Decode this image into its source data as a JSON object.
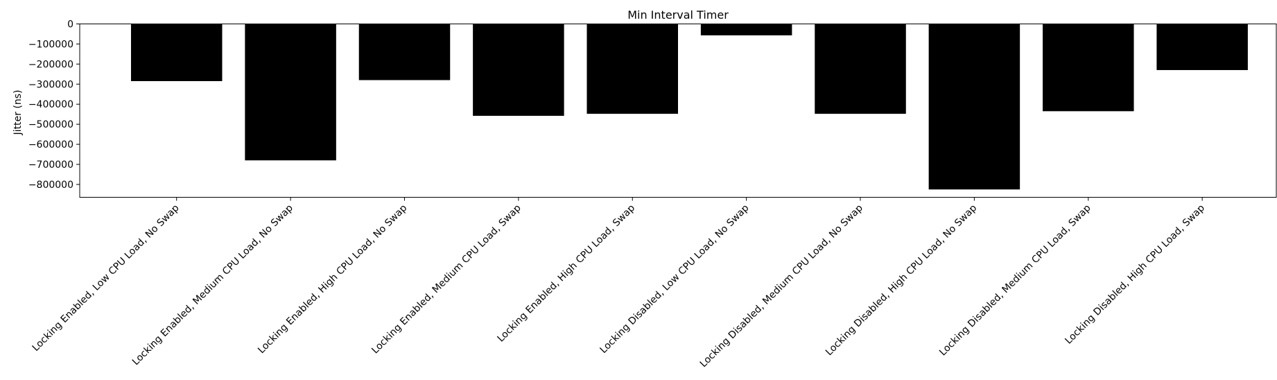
{
  "chart_data": {
    "type": "bar",
    "title": "Min Interval Timer",
    "xlabel": "",
    "ylabel": "Jitter (ns)",
    "categories": [
      "Locking Enabled, Low CPU Load, No Swap",
      "Locking Enabled, Medium CPU Load, No Swap",
      "Locking Enabled, High CPU Load, No Swap",
      "Locking Enabled, Medium CPU Load, Swap",
      "Locking Enabled, High CPU Load, Swap",
      "Locking Disabled, Low CPU Load, No Swap",
      "Locking Disabled, Medium CPU Load, No Swap",
      "Locking Disabled, High CPU Load, No Swap",
      "Locking Disabled, Medium CPU Load, Swap",
      "Locking Disabled, High CPU Load, Swap"
    ],
    "values": [
      -285000,
      -680000,
      -280000,
      -458000,
      -448000,
      -57000,
      -448000,
      -825000,
      -435000,
      -230000
    ],
    "yticks": [
      0,
      -100000,
      -200000,
      -300000,
      -400000,
      -500000,
      -600000,
      -700000,
      -800000
    ],
    "ytick_labels": [
      "0",
      "−100000",
      "−200000",
      "−300000",
      "−400000",
      "−500000",
      "−600000",
      "−700000",
      "−800000"
    ],
    "ylim": [
      -864000,
      0
    ],
    "grid": false,
    "bar_color": "#000000"
  }
}
